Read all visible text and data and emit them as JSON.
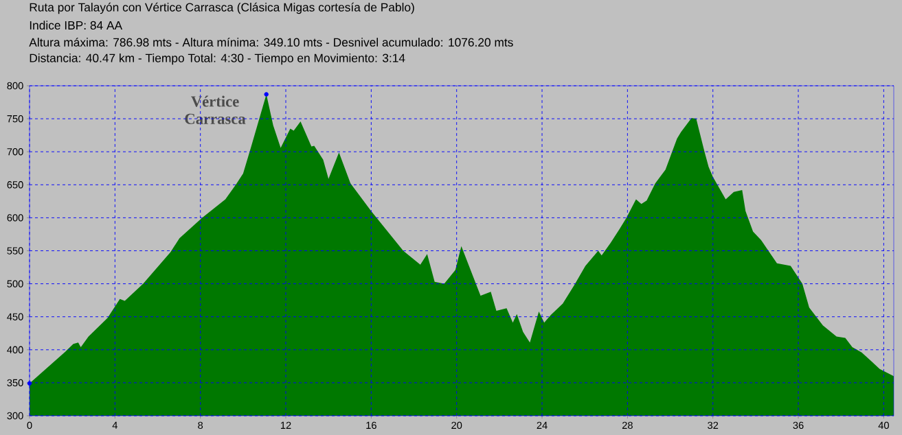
{
  "chart_data": {
    "type": "area",
    "title": "Ruta por Talayón con Vértice Carrasca (Clásica Migas cortesía de Pablo)",
    "annotations": [
      "Indice IBP: 84 AA",
      "Altura máxima: 786.98 mts - Altura mínima: 349.10 mts - Desnivel acumulado: 1076.20 mts",
      "Distancia: 40.47 km - Tiempo Total: 4:30 -  Tiempo en Movimiento: 3:14",
      {
        "text": "Vértice Carrasca",
        "x": 11.09,
        "y": 786.98
      }
    ],
    "xlim": [
      0,
      40.47
    ],
    "ylim": [
      300,
      800
    ],
    "xticks": [
      0,
      4,
      8,
      12,
      16,
      20,
      24,
      28,
      32,
      36,
      40
    ],
    "yticks": [
      300,
      350,
      400,
      450,
      500,
      550,
      600,
      650,
      700,
      750,
      800
    ],
    "grid": true,
    "series": [
      {
        "color": "#007800",
        "x": [
          0,
          1.67,
          2.05,
          2.28,
          2.4,
          2.76,
          3.65,
          4.23,
          4.46,
          5.32,
          6.6,
          7.02,
          8.08,
          9.17,
          9.68,
          10.0,
          10.38,
          11.09,
          11.41,
          11.76,
          12.21,
          12.37,
          12.69,
          13.2,
          13.33,
          13.75,
          14.0,
          14.49,
          15.03,
          16.0,
          17.5,
          18.3,
          18.62,
          18.97,
          19.42,
          19.94,
          20.22,
          21.12,
          21.6,
          21.86,
          22.34,
          22.63,
          22.82,
          23.11,
          23.43,
          23.85,
          24.1,
          24.42,
          24.97,
          25.51,
          26.03,
          26.63,
          26.79,
          27.21,
          27.63,
          27.95,
          28.4,
          28.65,
          28.9,
          29.3,
          29.78,
          30.32,
          30.51,
          31.0,
          31.22,
          31.6,
          31.8,
          32.0,
          32.6,
          32.98,
          33.37,
          33.53,
          33.88,
          34.26,
          35.0,
          35.64,
          36.19,
          36.51,
          37.15,
          37.79,
          38.2,
          38.53,
          38.97,
          39.81,
          40.47
        ],
        "values": [
          349.1,
          397,
          409,
          411,
          404,
          420,
          448,
          477,
          474,
          500,
          548,
          569,
          600,
          628,
          651,
          667,
          708,
          786.98,
          740,
          706,
          735,
          732,
          746,
          708,
          709,
          688,
          659,
          699,
          652,
          610,
          550,
          529,
          545,
          503,
          500,
          521,
          557,
          482,
          488,
          459,
          463,
          441,
          454,
          427,
          411,
          458,
          441,
          453,
          470,
          498,
          527,
          550,
          543,
          562,
          583,
          600,
          628,
          621,
          626,
          652,
          673,
          720,
          730,
          751,
          750,
          701,
          677,
          662,
          628,
          639,
          642,
          610,
          579,
          566,
          531,
          527,
          500,
          464,
          437,
          420,
          418,
          404,
          396,
          371,
          360
        ]
      },
      {
        "type": "scatter",
        "color": "#0000ff",
        "marker": "circle",
        "x": [
          0,
          11.09
        ],
        "values": [
          349.1,
          786.98
        ]
      }
    ]
  }
}
